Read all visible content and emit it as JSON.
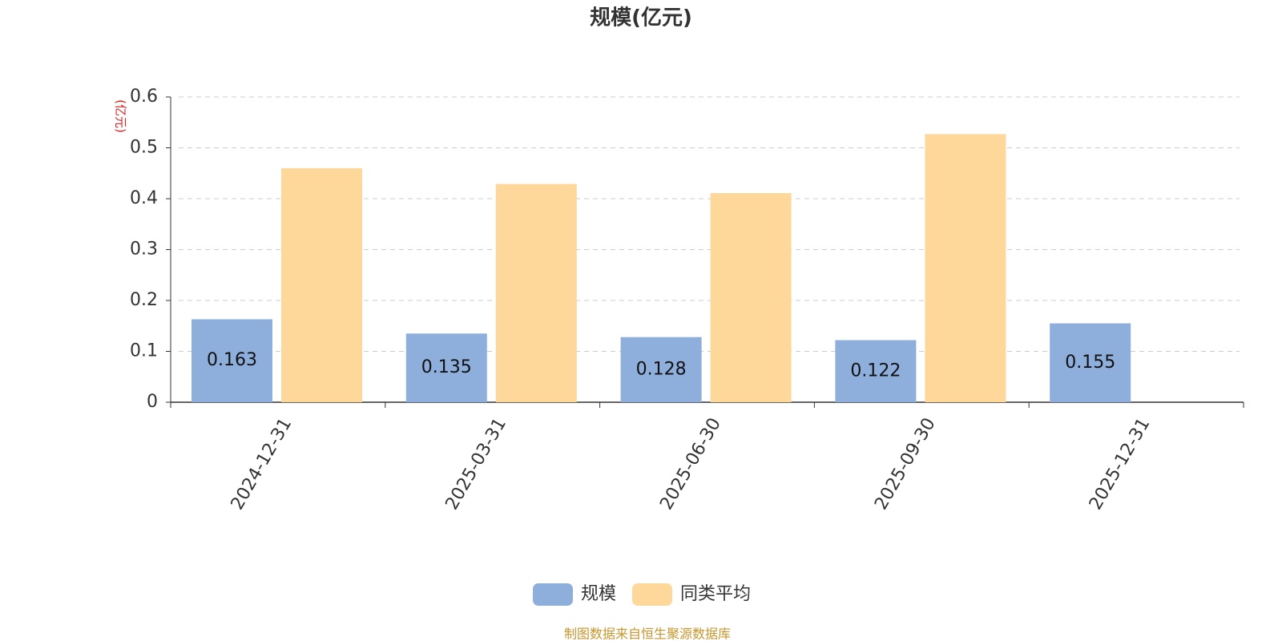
{
  "chart_data": {
    "type": "bar",
    "title": "规模(亿元)",
    "y_label": "(亿元)",
    "categories": [
      "2024-12-31",
      "2025-03-31",
      "2025-06-30",
      "2025-09-30",
      "2025-12-31"
    ],
    "series": [
      {
        "name": "规模",
        "color": "#8eaedb",
        "values": [
          0.163,
          0.135,
          0.128,
          0.122,
          0.155
        ]
      },
      {
        "name": "同类平均",
        "color": "#fdd89a",
        "values": [
          0.46,
          0.429,
          0.411,
          0.527,
          null
        ]
      }
    ],
    "ylim": [
      0,
      0.6
    ],
    "yticks": [
      0,
      0.1,
      0.2,
      0.3,
      0.4,
      0.5,
      0.6
    ],
    "grid": true,
    "legend": "bottom",
    "source": "制图数据来自恒生聚源数据库"
  }
}
